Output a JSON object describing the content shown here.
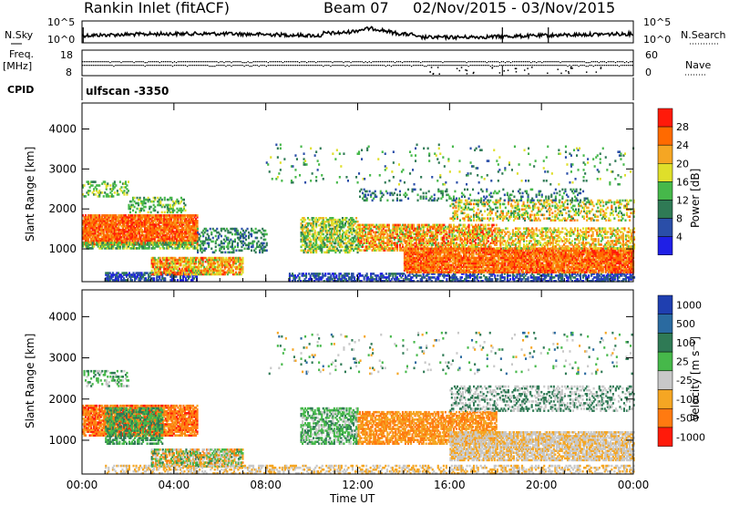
{
  "header": {
    "station": "Rankin Inlet (fitACF)",
    "beam": "Beam 07",
    "dates": "02/Nov/2015 - 03/Nov/2015"
  },
  "panels": {
    "nsky_label": "N.Sky",
    "nsearch_label": "N.Search",
    "nsky_ticks": [
      "10^5",
      "10^0"
    ],
    "freq_label_1": "Freq.",
    "freq_label_2": "[MHz]",
    "freq_ticks": [
      "18",
      "8"
    ],
    "nave_label": "Nave",
    "nave_ticks": [
      "60",
      "0"
    ],
    "cpid_label": "CPID",
    "cpid_value": "ulfscan -3350"
  },
  "chart_data": [
    {
      "type": "heatmap",
      "name": "power",
      "ylabel": "Slant Range [km]",
      "yticks": [
        1000,
        2000,
        3000,
        4000
      ],
      "ylim": [
        180,
        4650
      ],
      "xlim": [
        0,
        24
      ],
      "xticks": [
        "00:00",
        "04:00",
        "08:00",
        "12:00",
        "16:00",
        "20:00",
        "00:00"
      ],
      "colorbar_label": "Power [dB]",
      "colorbar_ticks": [
        "4",
        "8",
        "12",
        "16",
        "20",
        "24",
        "28"
      ],
      "colors": [
        "#1f1fe6",
        "#2a4ea8",
        "#2f7a55",
        "#46b84a",
        "#dfdf2a",
        "#f5a623",
        "#ff6a00",
        "#ff1a0a"
      ]
    },
    {
      "type": "heatmap",
      "name": "velocity",
      "ylabel": "Slant Range [km]",
      "yticks": [
        1000,
        2000,
        3000,
        4000
      ],
      "ylim": [
        180,
        4650
      ],
      "xlim": [
        0,
        24
      ],
      "xticks": [
        "00:00",
        "04:00",
        "08:00",
        "12:00",
        "16:00",
        "20:00",
        "00:00"
      ],
      "xlabel": "Time UT",
      "colorbar_label": "Velocity [m s⁻¹]",
      "colorbar_ticks": [
        "1000",
        "500",
        "100",
        "25",
        "-25",
        "-100",
        "-500",
        "-1000"
      ],
      "colors": [
        "#1f3fb0",
        "#2a6aa0",
        "#2f7a55",
        "#46b84a",
        "#c8c8c8",
        "#f5a623",
        "#ff7a10",
        "#ff1a0a"
      ]
    }
  ]
}
